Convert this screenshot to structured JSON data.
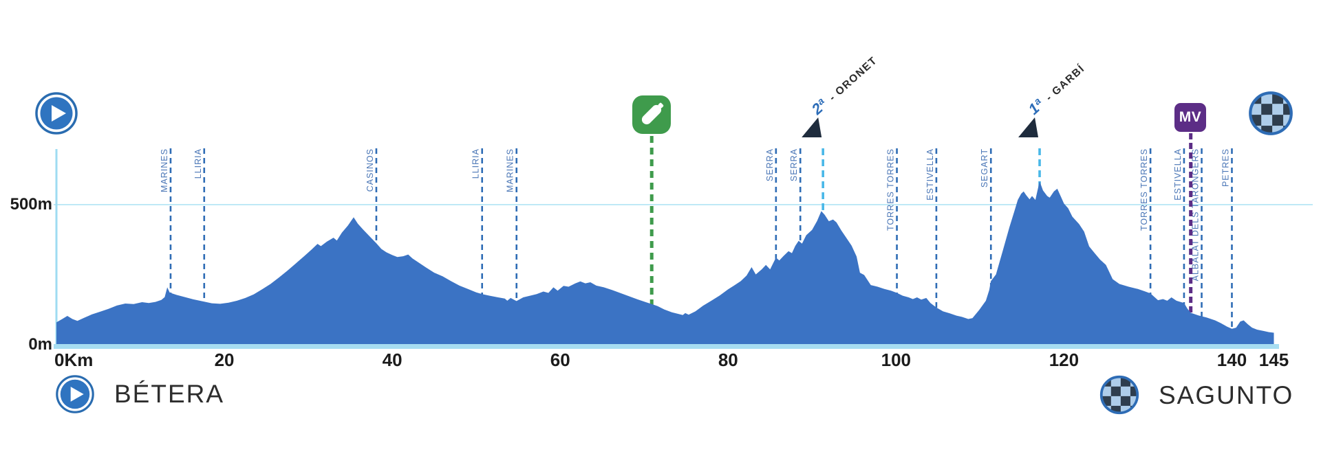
{
  "stage": {
    "start_label": "BÉTERA",
    "finish_label": "SAGUNTO",
    "distance_km": 145
  },
  "axis": {
    "x_ticks": [
      {
        "km": 0,
        "label": "0Km"
      },
      {
        "km": 20,
        "label": "20"
      },
      {
        "km": 40,
        "label": "40"
      },
      {
        "km": 60,
        "label": "60"
      },
      {
        "km": 80,
        "label": "80"
      },
      {
        "km": 100,
        "label": "100"
      },
      {
        "km": 120,
        "label": "120"
      },
      {
        "km": 140,
        "label": "140"
      },
      {
        "km": 145,
        "label": "145"
      }
    ],
    "y_labels": [
      {
        "m": 500,
        "label": "500m"
      },
      {
        "m": 0,
        "label": "0m"
      }
    ],
    "y_gridline_m": 500
  },
  "markers": {
    "towns": [
      {
        "name": "MARINES",
        "km": 13.6
      },
      {
        "name": "LLIRIA",
        "km": 17.6
      },
      {
        "name": "CASINOS",
        "km": 38.1
      },
      {
        "name": "LLIRIA",
        "km": 50.7
      },
      {
        "name": "MARINES",
        "km": 54.8
      },
      {
        "name": "SERRA",
        "km": 85.7
      },
      {
        "name": "SERRA",
        "km": 88.6
      },
      {
        "name": "TORRES TORRES",
        "km": 100.1
      },
      {
        "name": "ESTIVELLA",
        "km": 104.8
      },
      {
        "name": "SEGART",
        "km": 111.3
      },
      {
        "name": "TORRES TORRES",
        "km": 130.3
      },
      {
        "name": "ESTIVELLA",
        "km": 134.3
      },
      {
        "name": "ALBALAT DELS TARONGERS",
        "km": 136.4
      },
      {
        "name": "PETRES",
        "km": 140.0
      }
    ],
    "climbs": [
      {
        "category": "2ª",
        "name": "ORONET",
        "display": "2ª - ORONET",
        "km": 91.3
      },
      {
        "category": "1ª",
        "name": "GARBÍ",
        "display": "1ª - GARBÍ",
        "km": 117.1
      }
    ],
    "feed_zone": {
      "km": 70.9,
      "icon": "bidon-icon"
    },
    "mv": {
      "km": 135.1,
      "label": "MV"
    }
  },
  "colors": {
    "profile_fill": "#3b73c4",
    "baseline": "#a7ddf1",
    "axis_line": "#9edcf2",
    "gridline": "#bfe9f6",
    "town_line": "#2e6cb5",
    "town_label": "#4a76b6",
    "summit_line": "#49b8e8",
    "feed_line": "#3f9b4c",
    "mv_line": "#5c2d86",
    "climb_triangle": "#1f2c3d",
    "climb_category": "#2d6db8",
    "climb_text": "#2b2b2b",
    "tick_text": "#1b1b1b",
    "endpoint_text": "#2d2d2d",
    "start_icon": "#2f74c0",
    "start_icon_ring": "#2a6cb0",
    "checker_dark": "#2f3e4e",
    "checker_light": "#aecdea",
    "checker_ring": "#2e6cb5"
  },
  "chart_data": {
    "type": "area",
    "xlabel": "km",
    "ylabel": "m",
    "x_range_km": [
      0,
      145
    ],
    "y_range_m": [
      0,
      650
    ],
    "gridline_m": 500,
    "legend": "none",
    "points": [
      [
        0,
        80
      ],
      [
        0.7,
        92
      ],
      [
        1.3,
        103
      ],
      [
        1.9,
        92
      ],
      [
        2.5,
        85
      ],
      [
        3.3,
        96
      ],
      [
        4.2,
        108
      ],
      [
        5.2,
        118
      ],
      [
        6.2,
        128
      ],
      [
        7.2,
        140
      ],
      [
        8.2,
        147
      ],
      [
        9.2,
        145
      ],
      [
        10.2,
        152
      ],
      [
        11,
        149
      ],
      [
        11.8,
        153
      ],
      [
        12.5,
        160
      ],
      [
        12.9,
        170
      ],
      [
        13.2,
        205
      ],
      [
        13.5,
        186
      ],
      [
        14.3,
        178
      ],
      [
        15.3,
        170
      ],
      [
        16.3,
        162
      ],
      [
        17.6,
        154
      ],
      [
        18.5,
        148
      ],
      [
        19.5,
        146
      ],
      [
        20.5,
        150
      ],
      [
        21.5,
        157
      ],
      [
        22.5,
        167
      ],
      [
        23.5,
        180
      ],
      [
        24.5,
        198
      ],
      [
        25.5,
        217
      ],
      [
        26.5,
        240
      ],
      [
        27.5,
        264
      ],
      [
        28.5,
        290
      ],
      [
        29.5,
        316
      ],
      [
        30.4,
        340
      ],
      [
        31.1,
        360
      ],
      [
        31.5,
        352
      ],
      [
        32.2,
        368
      ],
      [
        33,
        382
      ],
      [
        33.4,
        372
      ],
      [
        34,
        400
      ],
      [
        34.7,
        425
      ],
      [
        35.4,
        455
      ],
      [
        35.9,
        432
      ],
      [
        36.5,
        412
      ],
      [
        37.2,
        390
      ],
      [
        38.1,
        362
      ],
      [
        38.7,
        342
      ],
      [
        39.3,
        330
      ],
      [
        40,
        320
      ],
      [
        40.6,
        313
      ],
      [
        41.3,
        316
      ],
      [
        41.9,
        322
      ],
      [
        42.4,
        308
      ],
      [
        43.1,
        294
      ],
      [
        44,
        276
      ],
      [
        45,
        257
      ],
      [
        46,
        244
      ],
      [
        47,
        227
      ],
      [
        48,
        211
      ],
      [
        49,
        199
      ],
      [
        50,
        187
      ],
      [
        50.7,
        181
      ],
      [
        51.6,
        175
      ],
      [
        52.6,
        169
      ],
      [
        53.4,
        165
      ],
      [
        53.7,
        157
      ],
      [
        54.1,
        167
      ],
      [
        54.8,
        156
      ],
      [
        55.6,
        169
      ],
      [
        56.4,
        175
      ],
      [
        57.2,
        181
      ],
      [
        58,
        190
      ],
      [
        58.6,
        185
      ],
      [
        59.2,
        205
      ],
      [
        59.7,
        193
      ],
      [
        60.4,
        210
      ],
      [
        61,
        207
      ],
      [
        61.8,
        219
      ],
      [
        62.4,
        226
      ],
      [
        63,
        219
      ],
      [
        63.6,
        223
      ],
      [
        64.3,
        211
      ],
      [
        65.2,
        205
      ],
      [
        66.2,
        195
      ],
      [
        67.2,
        184
      ],
      [
        68.2,
        173
      ],
      [
        69.2,
        162
      ],
      [
        70.2,
        152
      ],
      [
        70.9,
        145
      ],
      [
        71.6,
        138
      ],
      [
        72.4,
        126
      ],
      [
        73.3,
        116
      ],
      [
        74.2,
        109
      ],
      [
        74.6,
        106
      ],
      [
        74.9,
        113
      ],
      [
        75.3,
        107
      ],
      [
        76.1,
        119
      ],
      [
        77,
        139
      ],
      [
        78,
        157
      ],
      [
        79,
        176
      ],
      [
        80,
        198
      ],
      [
        80.7,
        211
      ],
      [
        81.5,
        227
      ],
      [
        82.2,
        247
      ],
      [
        82.8,
        277
      ],
      [
        83.3,
        251
      ],
      [
        84,
        269
      ],
      [
        84.5,
        285
      ],
      [
        85,
        269
      ],
      [
        85.7,
        311
      ],
      [
        86.1,
        301
      ],
      [
        86.6,
        317
      ],
      [
        87.2,
        334
      ],
      [
        87.6,
        327
      ],
      [
        88,
        353
      ],
      [
        88.4,
        371
      ],
      [
        88.8,
        361
      ],
      [
        89.3,
        391
      ],
      [
        90,
        410
      ],
      [
        90.6,
        442
      ],
      [
        91.1,
        477
      ],
      [
        91.5,
        464
      ],
      [
        92,
        441
      ],
      [
        92.5,
        447
      ],
      [
        92.9,
        437
      ],
      [
        93.5,
        407
      ],
      [
        94.1,
        381
      ],
      [
        94.7,
        354
      ],
      [
        95.3,
        315
      ],
      [
        95.7,
        257
      ],
      [
        96.2,
        249
      ],
      [
        97,
        213
      ],
      [
        97.8,
        207
      ],
      [
        98.6,
        199
      ],
      [
        99.4,
        193
      ],
      [
        100.1,
        185
      ],
      [
        100.8,
        175
      ],
      [
        101.5,
        169
      ],
      [
        102,
        163
      ],
      [
        102.5,
        169
      ],
      [
        103,
        161
      ],
      [
        103.6,
        167
      ],
      [
        104.1,
        149
      ],
      [
        104.8,
        133
      ],
      [
        105.6,
        119
      ],
      [
        106.4,
        112
      ],
      [
        107.2,
        104
      ],
      [
        107.9,
        99
      ],
      [
        108.6,
        92
      ],
      [
        109.1,
        95
      ],
      [
        109.9,
        124
      ],
      [
        110.7,
        157
      ],
      [
        111.1,
        195
      ],
      [
        111.3,
        227
      ],
      [
        111.9,
        251
      ],
      [
        112.7,
        334
      ],
      [
        113.5,
        419
      ],
      [
        114.1,
        477
      ],
      [
        114.5,
        517
      ],
      [
        114.9,
        539
      ],
      [
        115.2,
        547
      ],
      [
        115.5,
        534
      ],
      [
        115.9,
        519
      ],
      [
        116.2,
        531
      ],
      [
        116.6,
        517
      ],
      [
        117.1,
        584
      ],
      [
        117.5,
        551
      ],
      [
        118,
        531
      ],
      [
        118.3,
        525
      ],
      [
        118.8,
        547
      ],
      [
        119.2,
        557
      ],
      [
        119.6,
        531
      ],
      [
        120,
        504
      ],
      [
        120.5,
        487
      ],
      [
        121,
        457
      ],
      [
        121.8,
        431
      ],
      [
        122.4,
        404
      ],
      [
        123,
        351
      ],
      [
        123.6,
        329
      ],
      [
        124.3,
        304
      ],
      [
        125,
        285
      ],
      [
        125.8,
        234
      ],
      [
        126.6,
        217
      ],
      [
        127.7,
        207
      ],
      [
        128.8,
        199
      ],
      [
        129.6,
        191
      ],
      [
        130.3,
        183
      ],
      [
        131.2,
        159
      ],
      [
        131.8,
        163
      ],
      [
        132.3,
        157
      ],
      [
        132.8,
        169
      ],
      [
        133.4,
        157
      ],
      [
        134.3,
        149
      ],
      [
        134.7,
        129
      ],
      [
        135.1,
        114
      ],
      [
        136,
        105
      ],
      [
        137,
        97
      ],
      [
        138,
        87
      ],
      [
        138.7,
        77
      ],
      [
        139.4,
        65
      ],
      [
        140,
        57
      ],
      [
        140.5,
        61
      ],
      [
        141,
        83
      ],
      [
        141.4,
        87
      ],
      [
        141.9,
        73
      ],
      [
        142.4,
        61
      ],
      [
        143,
        54
      ],
      [
        143.8,
        49
      ],
      [
        144.4,
        45
      ],
      [
        145,
        43
      ]
    ]
  }
}
